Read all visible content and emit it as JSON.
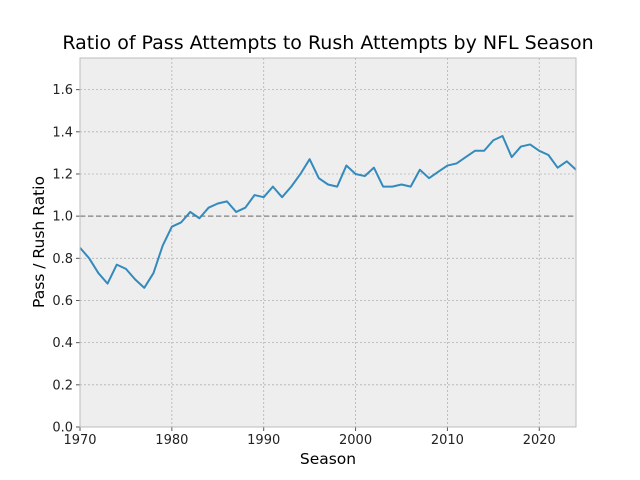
{
  "chart_data": {
    "type": "line",
    "title": "Ratio of Pass Attempts to Rush Attempts by NFL Season",
    "xlabel": "Season",
    "ylabel": "Pass / Rush Ratio",
    "xlim": [
      1970,
      2024
    ],
    "ylim": [
      0,
      1.75
    ],
    "x_ticks": [
      1970,
      1980,
      1990,
      2000,
      2010,
      2020
    ],
    "y_ticks": [
      0.0,
      0.2,
      0.4,
      0.6,
      0.8,
      1.0,
      1.2,
      1.4,
      1.6
    ],
    "y_tick_labels": [
      "0.0",
      "0.2",
      "0.4",
      "0.6",
      "0.8",
      "1.0",
      "1.2",
      "1.4",
      "1.6"
    ],
    "grid": true,
    "reference_line": {
      "y": 1.0,
      "style": "dashed",
      "color": "#808080"
    },
    "series": [
      {
        "color": "#348ABD",
        "x": [
          1970,
          1971,
          1972,
          1973,
          1974,
          1975,
          1976,
          1977,
          1978,
          1979,
          1980,
          1981,
          1982,
          1983,
          1984,
          1985,
          1986,
          1987,
          1988,
          1989,
          1990,
          1991,
          1992,
          1993,
          1994,
          1995,
          1996,
          1997,
          1998,
          1999,
          2000,
          2001,
          2002,
          2003,
          2004,
          2005,
          2006,
          2007,
          2008,
          2009,
          2010,
          2011,
          2012,
          2013,
          2014,
          2015,
          2016,
          2017,
          2018,
          2019,
          2020,
          2021,
          2022,
          2023,
          2024
        ],
        "y": [
          0.85,
          0.8,
          0.73,
          0.68,
          0.77,
          0.75,
          0.7,
          0.66,
          0.73,
          0.86,
          0.95,
          0.97,
          1.02,
          0.99,
          1.04,
          1.06,
          1.07,
          1.02,
          1.04,
          1.1,
          1.09,
          1.14,
          1.09,
          1.14,
          1.2,
          1.27,
          1.18,
          1.15,
          1.14,
          1.24,
          1.2,
          1.19,
          1.23,
          1.14,
          1.14,
          1.15,
          1.14,
          1.22,
          1.18,
          1.21,
          1.24,
          1.25,
          1.28,
          1.31,
          1.31,
          1.36,
          1.38,
          1.28,
          1.33,
          1.34,
          1.31,
          1.29,
          1.23,
          1.26,
          1.22
        ]
      }
    ]
  },
  "colors": {
    "plot_background": "#EEEEEE",
    "grid": "#B2B2B2",
    "line": "#348ABD",
    "reference": "#808080"
  }
}
